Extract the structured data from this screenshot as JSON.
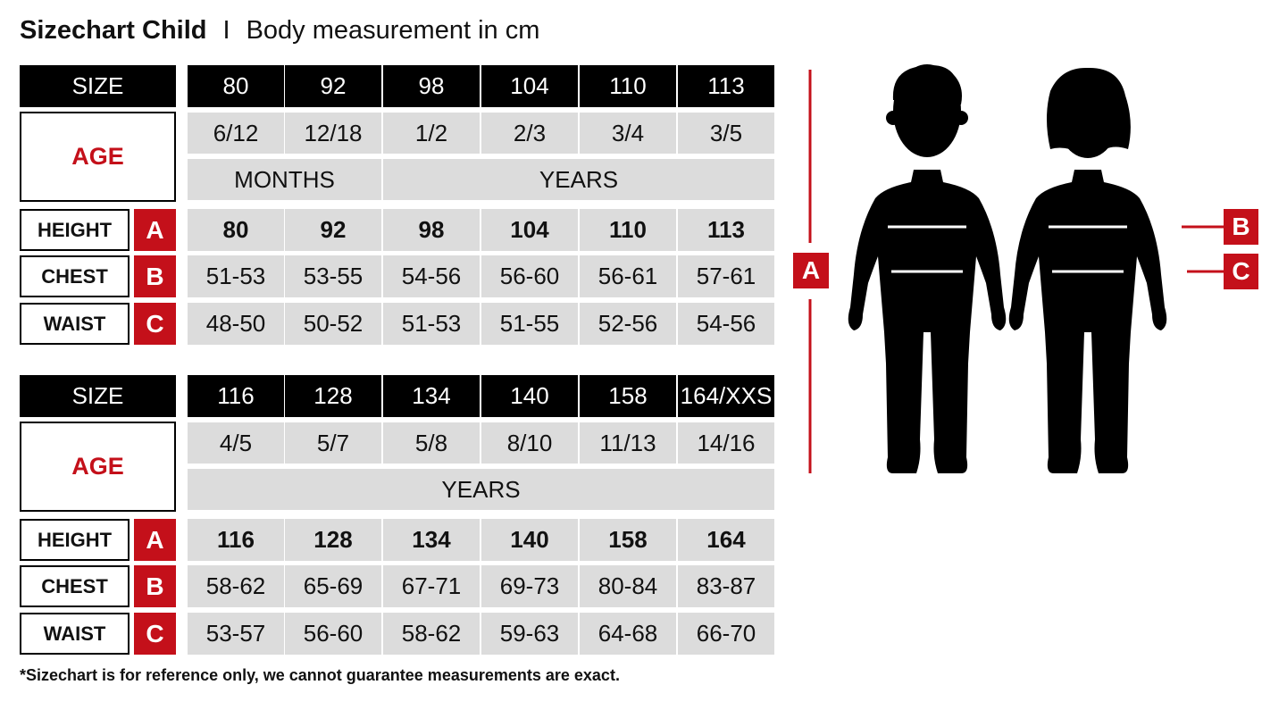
{
  "title": {
    "main": "Sizechart Child",
    "separator": "I",
    "subtitle": "Body measurement in cm"
  },
  "labels": {
    "size": "SIZE",
    "age": "AGE",
    "height": "HEIGHT",
    "chest": "CHEST",
    "waist": "WAIST",
    "a": "A",
    "b": "B",
    "c": "C"
  },
  "tables": [
    {
      "sizes": [
        "80",
        "92",
        "98",
        "104",
        "110",
        "113"
      ],
      "ages": [
        "6/12",
        "12/18",
        "1/2",
        "2/3",
        "3/4",
        "3/5"
      ],
      "age_units": [
        {
          "label": "MONTHS",
          "span": 2
        },
        {
          "label": "YEARS",
          "span": 4
        }
      ],
      "height": [
        "80",
        "92",
        "98",
        "104",
        "110",
        "113"
      ],
      "chest": [
        "51-53",
        "53-55",
        "54-56",
        "56-60",
        "56-61",
        "57-61"
      ],
      "waist": [
        "48-50",
        "50-52",
        "51-53",
        "51-55",
        "52-56",
        "54-56"
      ]
    },
    {
      "sizes": [
        "116",
        "128",
        "134",
        "140",
        "158",
        "164/XXS"
      ],
      "ages": [
        "4/5",
        "5/7",
        "5/8",
        "8/10",
        "11/13",
        "14/16"
      ],
      "age_units": [
        {
          "label": "YEARS",
          "span": 6
        }
      ],
      "height": [
        "116",
        "128",
        "134",
        "140",
        "158",
        "164"
      ],
      "chest": [
        "58-62",
        "65-69",
        "67-71",
        "69-73",
        "80-84",
        "83-87"
      ],
      "waist": [
        "53-57",
        "56-60",
        "58-62",
        "59-63",
        "64-68",
        "66-70"
      ]
    }
  ],
  "diagram": {
    "markers": {
      "height": "A",
      "chest": "B",
      "waist": "C"
    },
    "figures": [
      "boy-silhouette",
      "girl-silhouette"
    ]
  },
  "footnote": "*Sizechart is for reference only, we cannot guarantee measurements are exact.",
  "colors": {
    "accent_red": "#c4101a",
    "header_black": "#000000",
    "cell_gray": "#dcdcdc"
  }
}
